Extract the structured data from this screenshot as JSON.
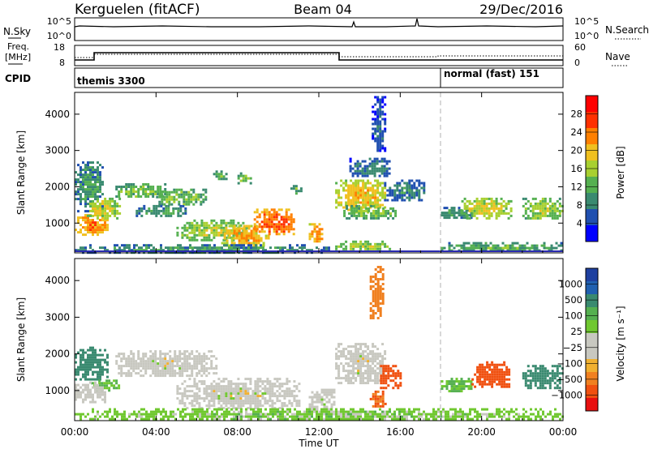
{
  "header": {
    "station": "Kerguelen (fitACF)",
    "beam": "Beam 04",
    "date": "29/Dec/2016"
  },
  "strips": {
    "sky_label": "N.Sky",
    "sky_ticks": [
      "10^5",
      "10^0"
    ],
    "search_label": "N.Search",
    "search_ticks": [
      "10^5",
      "10^0"
    ],
    "freq_label_1": "Freq.",
    "freq_label_2": "[MHz]",
    "freq_ticks": [
      "18",
      "8"
    ],
    "nave_label": "Nave",
    "nave_ticks": [
      "60",
      "0"
    ],
    "cpid_label": "CPID",
    "cpid_segments": [
      {
        "text": "themis 3300",
        "start_hour": 0
      },
      {
        "text": "normal (fast) 151",
        "start_hour": 18
      }
    ]
  },
  "colors": {
    "power_scale": [
      "#0000ff",
      "#2050b0",
      "#3a8a70",
      "#55b050",
      "#a8d030",
      "#f0c020",
      "#ff8000",
      "#ff3000",
      "#ff0000"
    ],
    "velocity_scale": [
      "#1e40a0",
      "#2060b0",
      "#3a8a70",
      "#55b050",
      "#70c830",
      "#c8c8c0",
      "#c8c8c0",
      "#f0b030",
      "#f08020",
      "#f05010",
      "#e81010"
    ],
    "ground_scatter": "#c8c8c0",
    "quiet_line": "#2a2ab0"
  },
  "chart_data": [
    {
      "type": "heatmap",
      "name": "power",
      "ylabel": "Slant Range [km]",
      "colorbar_label": "Power [dB]",
      "colorbar_ticks": [
        "28",
        "24",
        "20",
        "16",
        "12",
        "8",
        "4"
      ],
      "ylim": [
        180,
        4600
      ],
      "yticks": [
        1000,
        2000,
        3000,
        4000
      ],
      "xlim": [
        0,
        24
      ],
      "patches": [
        {
          "t0": 0.0,
          "t1": 1.6,
          "r0": 700,
          "r1": 1250,
          "level": 24
        },
        {
          "t0": 0.0,
          "t1": 1.4,
          "r0": 1350,
          "r1": 2700,
          "level": 10
        },
        {
          "t0": 0.6,
          "t1": 2.2,
          "r0": 1150,
          "r1": 1700,
          "level": 18
        },
        {
          "t0": 2.0,
          "t1": 4.5,
          "r0": 1700,
          "r1": 2100,
          "level": 14
        },
        {
          "t0": 4.0,
          "t1": 6.5,
          "r0": 1500,
          "r1": 1950,
          "level": 14
        },
        {
          "t0": 3.0,
          "t1": 5.5,
          "r0": 1200,
          "r1": 1500,
          "level": 10
        },
        {
          "t0": 5.0,
          "t1": 8.5,
          "r0": 550,
          "r1": 1100,
          "level": 16
        },
        {
          "t0": 7.2,
          "t1": 9.5,
          "r0": 400,
          "r1": 950,
          "level": 22
        },
        {
          "t0": 8.8,
          "t1": 10.8,
          "r0": 700,
          "r1": 1400,
          "level": 26
        },
        {
          "t0": 6.8,
          "t1": 7.4,
          "r0": 2200,
          "r1": 2450,
          "level": 12
        },
        {
          "t0": 8.0,
          "t1": 8.6,
          "r0": 2100,
          "r1": 2400,
          "level": 14
        },
        {
          "t0": 10.6,
          "t1": 11.2,
          "r0": 1800,
          "r1": 2050,
          "level": 12
        },
        {
          "t0": 11.5,
          "t1": 12.2,
          "r0": 500,
          "r1": 1000,
          "level": 24
        },
        {
          "t0": 12.8,
          "t1": 15.3,
          "r0": 1300,
          "r1": 2200,
          "level": 20
        },
        {
          "t0": 13.2,
          "t1": 15.8,
          "r0": 1150,
          "r1": 1500,
          "level": 14
        },
        {
          "t0": 12.8,
          "t1": 15.5,
          "r0": 280,
          "r1": 520,
          "level": 16
        },
        {
          "t0": 13.5,
          "t1": 15.5,
          "r0": 2300,
          "r1": 2800,
          "level": 8
        },
        {
          "t0": 14.6,
          "t1": 15.2,
          "r0": 3000,
          "r1": 4500,
          "level": 6
        },
        {
          "t0": 15.2,
          "t1": 17.2,
          "r0": 1600,
          "r1": 2200,
          "level": 8
        },
        {
          "t0": 18.0,
          "t1": 19.5,
          "r0": 1150,
          "r1": 1450,
          "level": 10
        },
        {
          "t0": 19.0,
          "t1": 21.5,
          "r0": 1150,
          "r1": 1700,
          "level": 18
        },
        {
          "t0": 22.0,
          "t1": 24.0,
          "r0": 1100,
          "r1": 1700,
          "level": 16
        },
        {
          "t0": 18.0,
          "t1": 24.0,
          "r0": 220,
          "r1": 480,
          "level": 12
        },
        {
          "t0": 0.0,
          "t1": 12.5,
          "r0": 200,
          "r1": 420,
          "level": 10
        }
      ]
    },
    {
      "type": "heatmap",
      "name": "velocity",
      "ylabel": "Slant Range [km]",
      "colorbar_label": "Velocity [m s⁻¹]",
      "colorbar_ticks": [
        "1000",
        "500",
        "100",
        "25",
        "−25",
        "−100",
        "−500",
        "−1000"
      ],
      "ylim": [
        180,
        4600
      ],
      "yticks": [
        1000,
        2000,
        3000,
        4000
      ],
      "xlim": [
        0,
        24
      ],
      "xticks": [
        "00:00",
        "04:00",
        "08:00",
        "12:00",
        "16:00",
        "20:00",
        "00:00"
      ],
      "xlabel": "Time UT",
      "patches": [
        {
          "t0": 0.0,
          "t1": 1.6,
          "r0": 1300,
          "r1": 2200,
          "vel": 150
        },
        {
          "t0": 0.8,
          "t1": 2.2,
          "r0": 1000,
          "r1": 1300,
          "vel": 60
        },
        {
          "t0": 0.0,
          "t1": 1.5,
          "r0": 700,
          "r1": 1250,
          "vel": 0
        },
        {
          "t0": 2.0,
          "t1": 7.0,
          "r0": 1400,
          "r1": 2100,
          "vel": 0
        },
        {
          "t0": 5.0,
          "t1": 11.0,
          "r0": 550,
          "r1": 1350,
          "vel": 0
        },
        {
          "t0": 11.5,
          "t1": 12.8,
          "r0": 450,
          "r1": 1050,
          "vel": 0
        },
        {
          "t0": 12.8,
          "t1": 15.3,
          "r0": 1200,
          "r1": 2300,
          "vel": 0
        },
        {
          "t0": 14.5,
          "t1": 15.3,
          "r0": 600,
          "r1": 1000,
          "vel": -300
        },
        {
          "t0": 15.0,
          "t1": 16.0,
          "r0": 1100,
          "r1": 1700,
          "vel": -400
        },
        {
          "t0": 14.5,
          "t1": 15.2,
          "r0": 3000,
          "r1": 4400,
          "vel": -150
        },
        {
          "t0": 18.0,
          "t1": 19.5,
          "r0": 1000,
          "r1": 1350,
          "vel": 60
        },
        {
          "t0": 19.5,
          "t1": 21.3,
          "r0": 1100,
          "r1": 1800,
          "vel": -400
        },
        {
          "t0": 22.0,
          "t1": 24.0,
          "r0": 1100,
          "r1": 1700,
          "vel": 250
        },
        {
          "t0": 0.0,
          "t1": 24.0,
          "r0": 200,
          "r1": 520,
          "vel": 40
        }
      ]
    }
  ]
}
